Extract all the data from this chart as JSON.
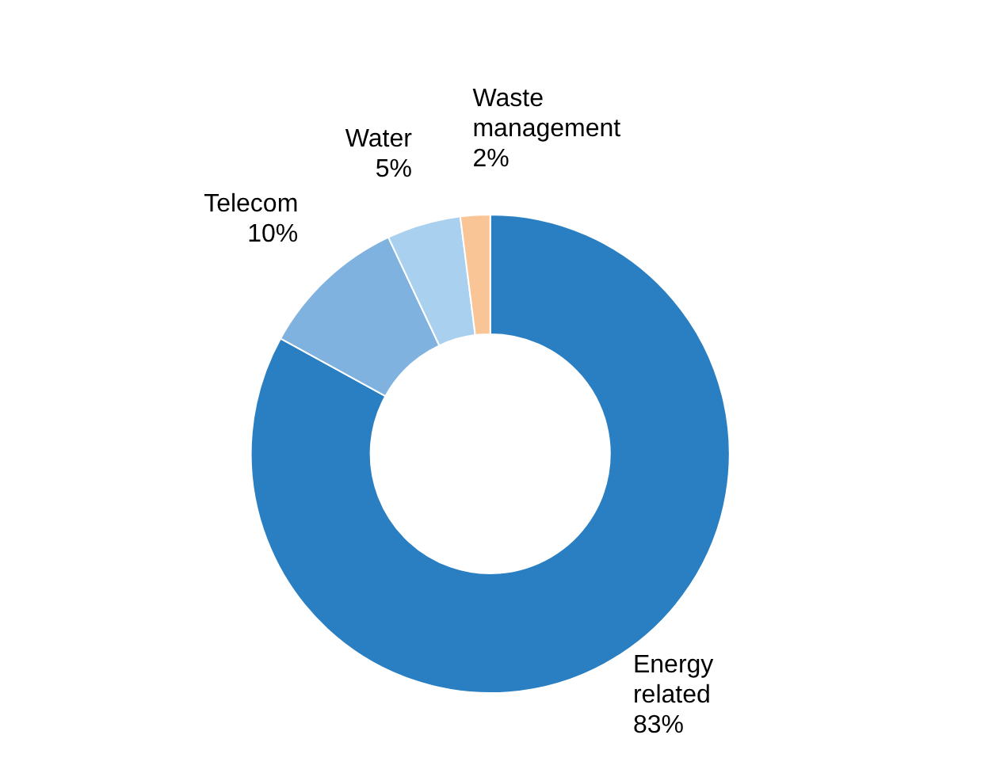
{
  "chart_data": {
    "type": "donut",
    "categories": [
      "Energy related",
      "Telecom",
      "Water",
      "Waste management"
    ],
    "values": [
      83,
      10,
      5,
      2
    ],
    "value_labels": [
      "83%",
      "10%",
      "5%",
      "2%"
    ],
    "colors": [
      "#2a7fc2",
      "#7fb2df",
      "#a9d0ef",
      "#f9c596"
    ],
    "legend": false
  }
}
